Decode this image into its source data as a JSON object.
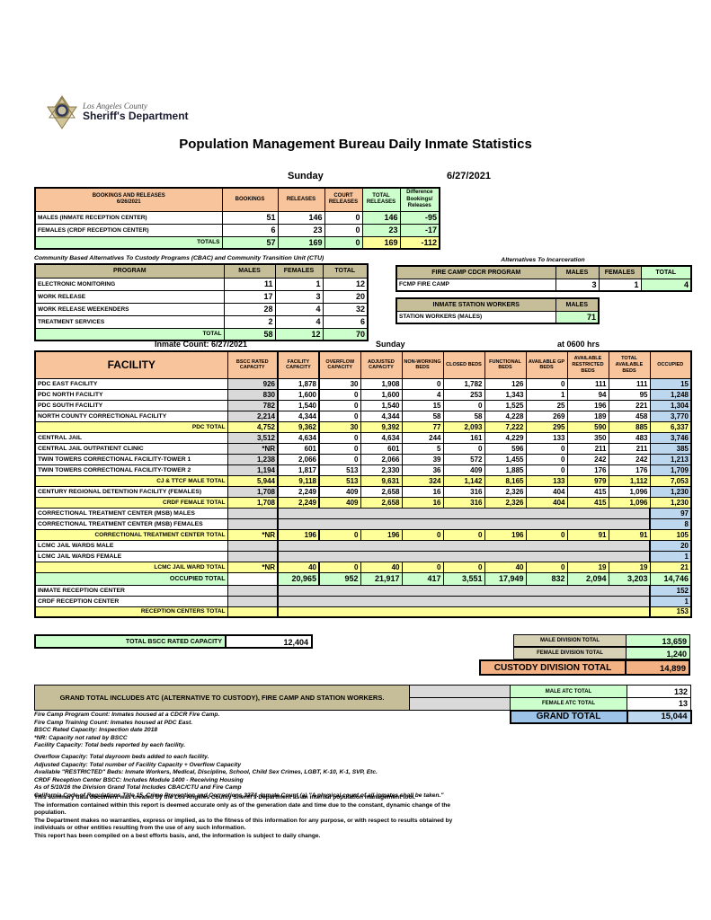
{
  "colors": {
    "orange": "#F8C49C",
    "tan": "#C6BE98",
    "tan-light": "#D6D0B4",
    "green": "#CCFFCC",
    "yellow": "#FFFF99",
    "blue": "#BDD7EE",
    "gray": "#D9D9D9",
    "cust-orange": "#F4B183",
    "grand-blue": "#9DC3E6"
  },
  "logo": {
    "county": "Los Angeles County",
    "department": "Sheriff's Department"
  },
  "title": "Population Management Bureau Daily Inmate Statistics",
  "date_line": {
    "day": "Sunday",
    "date": "6/27/2021"
  },
  "bookings": {
    "header": {
      "title": "BOOKINGS AND RELEASES",
      "date": "6/26/2021",
      "cols": [
        "BOOKINGS",
        "RELEASES",
        "COURT RELEASES",
        "TOTAL RELEASES",
        "Difference Bookings/ Releases"
      ]
    },
    "rows": [
      {
        "type": "data",
        "cells": [
          "MALES (INMATE RECEPTION CENTER)",
          "51",
          "146",
          "0",
          "146",
          "-95"
        ]
      },
      {
        "type": "data",
        "cells": [
          "FEMALES (CRDF RECEPTION CENTER)",
          "6",
          "23",
          "0",
          "23",
          "-17"
        ]
      },
      {
        "type": "totals",
        "cells": [
          "TOTALS",
          "57",
          "169",
          "0",
          "169",
          "-112"
        ]
      }
    ]
  },
  "cbac": {
    "title": "Community Based Alternatives To Custody Programs (CBAC) and Community Transition Unit (CTU)",
    "header": [
      "PROGRAM",
      "MALES",
      "FEMALES",
      "TOTAL"
    ],
    "rows": [
      {
        "type": "data",
        "cells": [
          "ELECTRONIC MONITORING",
          "11",
          "1",
          "12"
        ]
      },
      {
        "type": "data",
        "cells": [
          "WORK RELEASE",
          "17",
          "3",
          "20"
        ]
      },
      {
        "type": "data",
        "cells": [
          "WORK RELEASE WEEKENDERS",
          "28",
          "4",
          "32"
        ]
      },
      {
        "type": "data",
        "cells": [
          "TREATMENT SERVICES",
          "2",
          "4",
          "6"
        ]
      },
      {
        "type": "totals",
        "cells": [
          "TOTAL",
          "58",
          "12",
          "70"
        ]
      }
    ]
  },
  "alternatives": {
    "title": "Alternatives To Incarceration",
    "fire_camp": {
      "header": [
        "FIRE CAMP CDCR PROGRAM",
        "MALES",
        "FEMALES",
        "TOTAL"
      ],
      "rows": [
        {
          "type": "data",
          "cells": [
            "FCMP FIRE CAMP",
            "3",
            "1",
            "4"
          ]
        }
      ]
    },
    "station_workers": {
      "header": [
        "INMATE STATION WORKERS",
        "MALES"
      ],
      "rows": [
        {
          "type": "data",
          "cells": [
            "STATION WORKERS (MALES)",
            "71"
          ]
        }
      ]
    }
  },
  "inmate_count": {
    "left": "Inmate Count:  6/27/2021",
    "center": "Sunday",
    "right": "at 0600 hrs"
  },
  "facility_table": {
    "header": [
      "FACILITY",
      "BSCC RATED CAPACITY",
      "FACILITY CAPACITY",
      "OVERFLOW CAPACITY",
      "ADJUSTED CAPACITY",
      "NON-WORKING BEDS",
      "CLOSED BEDS",
      "FUNCTIONAL BEDS",
      "AVAILABLE GP BEDS",
      "AVAILABLE RESTRICTED BEDS",
      "TOTAL AVAILABLE BEDS",
      "OCCUPIED"
    ],
    "rows": [
      {
        "type": "facility",
        "cells": [
          "PDC EAST FACILITY",
          "926",
          "1,878",
          "30",
          "1,908",
          "0",
          "1,782",
          "126",
          "0",
          "111",
          "111",
          "15"
        ]
      },
      {
        "type": "facility",
        "cells": [
          "PDC NORTH FACILITY",
          "830",
          "1,600",
          "0",
          "1,600",
          "4",
          "253",
          "1,343",
          "1",
          "94",
          "95",
          "1,248"
        ]
      },
      {
        "type": "facility",
        "cells": [
          "PDC SOUTH FACILITY",
          "782",
          "1,540",
          "0",
          "1,540",
          "15",
          "0",
          "1,525",
          "25",
          "196",
          "221",
          "1,304"
        ]
      },
      {
        "type": "facility",
        "cells": [
          "NORTH COUNTY CORRECTIONAL FACILITY",
          "2,214",
          "4,344",
          "0",
          "4,344",
          "58",
          "58",
          "4,228",
          "269",
          "189",
          "458",
          "3,770"
        ]
      },
      {
        "type": "total",
        "cells": [
          "PDC TOTAL",
          "4,752",
          "9,362",
          "30",
          "9,392",
          "77",
          "2,093",
          "7,222",
          "295",
          "590",
          "885",
          "6,337"
        ]
      },
      {
        "type": "facility",
        "cells": [
          "CENTRAL JAIL",
          "3,512",
          "4,634",
          "0",
          "4,634",
          "244",
          "161",
          "4,229",
          "133",
          "350",
          "483",
          "3,746"
        ]
      },
      {
        "type": "facility",
        "cells": [
          "CENTRAL JAIL OUTPATIENT CLINIC",
          "*NR",
          "601",
          "0",
          "601",
          "5",
          "0",
          "596",
          "0",
          "211",
          "211",
          "385"
        ]
      },
      {
        "type": "facility",
        "cells": [
          "TWIN TOWERS CORRECTIONAL FACILITY-TOWER 1",
          "1,238",
          "2,066",
          "0",
          "2,066",
          "39",
          "572",
          "1,455",
          "0",
          "242",
          "242",
          "1,213"
        ]
      },
      {
        "type": "facility",
        "cells": [
          "TWIN TOWERS CORRECTIONAL FACILITY-TOWER 2",
          "1,194",
          "1,817",
          "513",
          "2,330",
          "36",
          "409",
          "1,885",
          "0",
          "176",
          "176",
          "1,709"
        ]
      },
      {
        "type": "total",
        "cells": [
          "CJ & TTCF MALE TOTAL",
          "5,944",
          "9,118",
          "513",
          "9,631",
          "324",
          "1,142",
          "8,165",
          "133",
          "979",
          "1,112",
          "7,053"
        ]
      },
      {
        "type": "facility",
        "cells": [
          "CENTURY REGIONAL DETENTION FACILITY (FEMALES)",
          "1,708",
          "2,249",
          "409",
          "2,658",
          "16",
          "316",
          "2,326",
          "404",
          "415",
          "1,096",
          "1,230"
        ]
      },
      {
        "type": "total",
        "cells": [
          "CRDF FEMALE TOTAL",
          "1,708",
          "2,249",
          "409",
          "2,658",
          "16",
          "316",
          "2,326",
          "404",
          "415",
          "1,096",
          "1,230"
        ]
      },
      {
        "type": "empty",
        "label": "CORRECTIONAL TREATMENT CENTER (MSB) MALES",
        "bscc": "",
        "occupied": "97"
      },
      {
        "type": "empty",
        "label": "CORRECTIONAL TREATMENT CENTER (MSB) FEMALES",
        "bscc": "",
        "occupied": "8"
      },
      {
        "type": "total",
        "cells": [
          "CORRECTIONAL TREATMENT CENTER TOTAL",
          "*NR",
          "196",
          "0",
          "196",
          "0",
          "0",
          "196",
          "0",
          "91",
          "91",
          "105"
        ]
      },
      {
        "type": "empty",
        "label": "LCMC JAIL WARDS MALE",
        "bscc": "",
        "occupied": "20"
      },
      {
        "type": "empty",
        "label": "LCMC JAIL WARDS FEMALE",
        "bscc": "",
        "occupied": "1"
      },
      {
        "type": "total",
        "cells": [
          "LCMC JAIL WARD TOTAL",
          "*NR",
          "40",
          "0",
          "40",
          "0",
          "0",
          "40",
          "0",
          "19",
          "19",
          "21"
        ]
      },
      {
        "type": "occupied",
        "cells": [
          "OCCUPIED TOTAL",
          "",
          "20,965",
          "952",
          "21,917",
          "417",
          "3,551",
          "17,949",
          "832",
          "2,094",
          "3,203",
          "14,746"
        ]
      },
      {
        "type": "empty",
        "label": "INMATE RECEPTION CENTER",
        "bscc": "",
        "occupied": "152"
      },
      {
        "type": "empty",
        "label": "CRDF RECEPTION CENTER",
        "bscc": "",
        "occupied": "1"
      },
      {
        "type": "reception",
        "label": "RECEPTION CENTERS TOTAL",
        "bscc": "",
        "occupied": "153"
      }
    ]
  },
  "division_totals": {
    "bscc_label": "TOTAL BSCC RATED CAPACITY",
    "bscc_value": "12,404",
    "male": {
      "label": "MALE DIVISION TOTAL",
      "value": "13,659"
    },
    "female": {
      "label": "FEMALE DIVISION TOTAL",
      "value": "1,240"
    },
    "custody": {
      "label": "CUSTODY DIVISION TOTAL",
      "value": "14,899"
    }
  },
  "atc": {
    "note": "GRAND TOTAL INCLUDES ATC (ALTERNATIVE TO CUSTODY), FIRE CAMP AND STATION WORKERS.",
    "male": {
      "label": "MALE ATC TOTAL",
      "value": "132"
    },
    "female": {
      "label": "FEMALE ATC TOTAL",
      "value": "13"
    },
    "grand": {
      "label": "GRAND TOTAL",
      "value": "15,044"
    }
  },
  "footnotes_a": [
    "Fire Camp Program Count: Inmates housed at a CDCR Fire Camp.",
    "Fire Camp Training Count: Inmates housed at PDC East.",
    "BSCC Rated Capacity: Inspection date 2018",
    "*NR: Capacity not rated by BSCC",
    "Facility Capacity: Total beds reported by each facility."
  ],
  "footnotes_b": [
    "Overflow Capacity: Total dayroom beds added to each facility.",
    "Adjusted Capacity: Total number of Facility Capacity + Overflow Capacity",
    "Available \"RESTRICTED\" Beds: Inmate Workers, Medical, Discipline, School, Child Sex Crimes, LGBT, K-10, K-1, SVP, Etc.",
    "CRDF Reception Center BSCC: Includes Module 1400 - Receiving Housing",
    "As of 5/10/16 the Division Grand Total Includes CBAC/CTU and Fire Camp",
    "California Code of Regulations Title 15. Crime Prevention and Corrections 3274. Inmate Count (a) \"A physical count of all inmates shall be taken.\""
  ],
  "disclaimer": [
    "This summary data document was created by the Los Angeles County Sheriff's Department as an internal population management tool.",
    "The information contained within this report is deemed accurate only as of the generation date and time due to the constant, dynamic change of the population.",
    "The Department makes no warranties, express or implied, as to the fitness of this information for any purpose, or with respect to results obtained by individuals or other entities resulting from the use of any such information.",
    "This report has been compiled on a best efforts basis, and, the information is subject to daily change."
  ]
}
